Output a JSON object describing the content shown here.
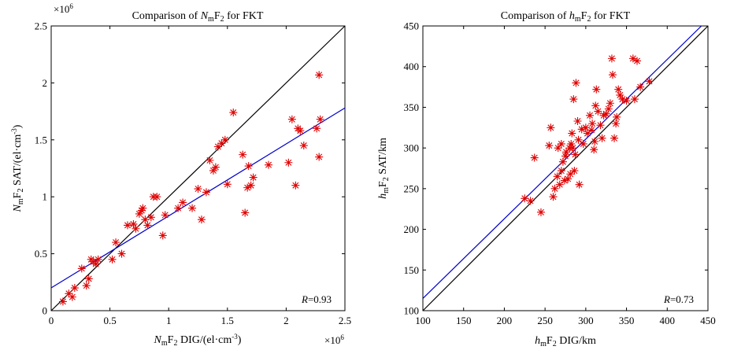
{
  "figure": {
    "title": ""
  },
  "chart_data": [
    {
      "type": "scatter",
      "title_pre": "Comparison of ",
      "title_var": "N",
      "title_sub": "m",
      "title_post": "F",
      "title_sub2": "2",
      "title_end": " for FKT",
      "xlabel_var": "N",
      "xlabel_sub": "m",
      "xlabel_f": "F",
      "xlabel_sub2": "2",
      "xlabel_rest": " DIG/(el·cm",
      "xlabel_sup": "-3",
      "xlabel_end": ")",
      "ylabel_var": "N",
      "ylabel_sub": "m",
      "ylabel_f": "F",
      "ylabel_sub2": "2",
      "ylabel_rest": " SAT/(el·cm",
      "ylabel_sup": "-3",
      "ylabel_end": ")",
      "x_exponent_base": "×10",
      "x_exponent_sup": "6",
      "y_exponent_base": "×10",
      "y_exponent_sup": "6",
      "xlim": [
        0,
        2.5
      ],
      "ylim": [
        0,
        2.5
      ],
      "xticks": [
        "0",
        "0.5",
        "1",
        "1.5",
        "2",
        "2.5"
      ],
      "yticks": [
        "0",
        "0.5",
        "1",
        "1.5",
        "2",
        "2.5"
      ],
      "xtick_values": [
        0,
        0.5,
        1,
        1.5,
        2,
        2.5
      ],
      "ytick_values": [
        0,
        0.5,
        1,
        1.5,
        2,
        2.5
      ],
      "annotation_var": "R",
      "annotation_value": "=0.93",
      "reference_line": {
        "x": [
          0,
          2.5
        ],
        "y": [
          0,
          2.5
        ],
        "color": "#000000"
      },
      "fit_line": {
        "x": [
          0,
          2.5
        ],
        "y": [
          0.2,
          1.78
        ],
        "color": "#0000cc"
      },
      "marker_color": "#e00000",
      "points": [
        [
          0.1,
          0.08
        ],
        [
          0.15,
          0.15
        ],
        [
          0.18,
          0.12
        ],
        [
          0.2,
          0.2
        ],
        [
          0.26,
          0.37
        ],
        [
          0.3,
          0.22
        ],
        [
          0.32,
          0.28
        ],
        [
          0.34,
          0.45
        ],
        [
          0.36,
          0.43
        ],
        [
          0.38,
          0.41
        ],
        [
          0.4,
          0.45
        ],
        [
          0.52,
          0.45
        ],
        [
          0.55,
          0.6
        ],
        [
          0.6,
          0.5
        ],
        [
          0.65,
          0.75
        ],
        [
          0.7,
          0.76
        ],
        [
          0.72,
          0.72
        ],
        [
          0.75,
          0.85
        ],
        [
          0.77,
          0.88
        ],
        [
          0.78,
          0.9
        ],
        [
          0.8,
          0.8
        ],
        [
          0.82,
          0.75
        ],
        [
          0.85,
          0.82
        ],
        [
          0.87,
          1.0
        ],
        [
          0.9,
          1.0
        ],
        [
          0.95,
          0.66
        ],
        [
          0.97,
          0.84
        ],
        [
          1.08,
          0.9
        ],
        [
          1.12,
          0.95
        ],
        [
          1.2,
          0.9
        ],
        [
          1.25,
          1.07
        ],
        [
          1.28,
          0.8
        ],
        [
          1.32,
          1.04
        ],
        [
          1.35,
          1.32
        ],
        [
          1.38,
          1.23
        ],
        [
          1.4,
          1.26
        ],
        [
          1.42,
          1.44
        ],
        [
          1.45,
          1.47
        ],
        [
          1.48,
          1.5
        ],
        [
          1.5,
          1.11
        ],
        [
          1.55,
          1.74
        ],
        [
          1.63,
          1.37
        ],
        [
          1.65,
          0.86
        ],
        [
          1.67,
          1.08
        ],
        [
          1.68,
          1.27
        ],
        [
          1.7,
          1.1
        ],
        [
          1.72,
          1.17
        ],
        [
          1.85,
          1.28
        ],
        [
          2.02,
          1.3
        ],
        [
          2.05,
          1.68
        ],
        [
          2.08,
          1.1
        ],
        [
          2.1,
          1.6
        ],
        [
          2.12,
          1.58
        ],
        [
          2.15,
          1.45
        ],
        [
          2.26,
          1.6
        ],
        [
          2.28,
          1.35
        ],
        [
          2.29,
          1.68
        ],
        [
          2.28,
          2.07
        ]
      ]
    },
    {
      "type": "scatter",
      "title_pre": "Comparison of ",
      "title_var": "h",
      "title_sub": "m",
      "title_post": "F",
      "title_sub2": "2",
      "title_end": " for FKT",
      "xlabel_var": "h",
      "xlabel_sub": "m",
      "xlabel_f": "F",
      "xlabel_sub2": "2",
      "xlabel_rest": " DIG/km",
      "ylabel_var": "h",
      "ylabel_sub": "m",
      "ylabel_f": "F",
      "ylabel_sub2": "2",
      "ylabel_rest": " SAT/km",
      "xlim": [
        100,
        450
      ],
      "ylim": [
        100,
        450
      ],
      "xticks": [
        "100",
        "150",
        "200",
        "250",
        "300",
        "350",
        "400",
        "450"
      ],
      "yticks": [
        "100",
        "150",
        "200",
        "250",
        "300",
        "350",
        "400",
        "450"
      ],
      "xtick_values": [
        100,
        150,
        200,
        250,
        300,
        350,
        400,
        450
      ],
      "ytick_values": [
        100,
        150,
        200,
        250,
        300,
        350,
        400,
        450
      ],
      "annotation_var": "R",
      "annotation_value": "=0.73",
      "reference_line": {
        "x": [
          100,
          450
        ],
        "y": [
          100,
          450
        ],
        "color": "#000000"
      },
      "fit_line": {
        "x": [
          100,
          442
        ],
        "y": [
          115,
          450
        ],
        "color": "#0000cc"
      },
      "marker_color": "#e00000",
      "points": [
        [
          225,
          238
        ],
        [
          232,
          235
        ],
        [
          237,
          288
        ],
        [
          245,
          221
        ],
        [
          255,
          303
        ],
        [
          257,
          325
        ],
        [
          260,
          240
        ],
        [
          262,
          250
        ],
        [
          265,
          265
        ],
        [
          266,
          300
        ],
        [
          268,
          255
        ],
        [
          270,
          272
        ],
        [
          270,
          305
        ],
        [
          272,
          283
        ],
        [
          274,
          260
        ],
        [
          275,
          290
        ],
        [
          276,
          295
        ],
        [
          278,
          262
        ],
        [
          280,
          300
        ],
        [
          281,
          268
        ],
        [
          282,
          305
        ],
        [
          283,
          318
        ],
        [
          284,
          300
        ],
        [
          285,
          360
        ],
        [
          286,
          272
        ],
        [
          287,
          292
        ],
        [
          288,
          380
        ],
        [
          290,
          333
        ],
        [
          291,
          310
        ],
        [
          292,
          255
        ],
        [
          295,
          323
        ],
        [
          297,
          305
        ],
        [
          300,
          325
        ],
        [
          302,
          318
        ],
        [
          305,
          340
        ],
        [
          307,
          322
        ],
        [
          308,
          330
        ],
        [
          310,
          298
        ],
        [
          311,
          308
        ],
        [
          312,
          352
        ],
        [
          313,
          372
        ],
        [
          315,
          345
        ],
        [
          318,
          328
        ],
        [
          320,
          312
        ],
        [
          322,
          340
        ],
        [
          325,
          342
        ],
        [
          328,
          348
        ],
        [
          330,
          355
        ],
        [
          332,
          410
        ],
        [
          333,
          390
        ],
        [
          335,
          312
        ],
        [
          337,
          330
        ],
        [
          338,
          338
        ],
        [
          340,
          372
        ],
        [
          342,
          365
        ],
        [
          345,
          360
        ],
        [
          350,
          358
        ],
        [
          358,
          410
        ],
        [
          360,
          360
        ],
        [
          363,
          407
        ],
        [
          367,
          375
        ],
        [
          378,
          382
        ]
      ]
    }
  ]
}
